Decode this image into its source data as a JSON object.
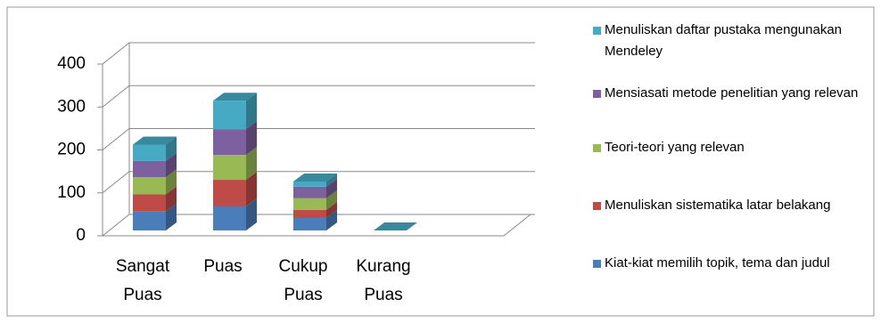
{
  "chart_data": {
    "type": "bar3d_stacked",
    "categories": [
      "Sangat Puas",
      "Puas",
      "Cukup Puas",
      "Kurang Puas",
      null
    ],
    "series": [
      {
        "name": "Kiat-kiat memilih topik, tema dan judul",
        "color": "#4a7ebb",
        "values": [
          44,
          56,
          29,
          0,
          null
        ]
      },
      {
        "name": "Menuliskan sistematika latar belakang",
        "color": "#be4b48",
        "values": [
          40,
          62,
          19,
          0,
          null
        ]
      },
      {
        "name": "Teori-teori yang relevan",
        "color": "#98b954",
        "values": [
          40,
          58,
          27,
          0,
          null
        ]
      },
      {
        "name": "Mensiasati metode penelitian yang relevan",
        "color": "#7d60a0",
        "values": [
          38,
          60,
          27,
          0,
          null
        ]
      },
      {
        "name": "Menuliskan daftar pustaka mengunakan Mendeley",
        "color": "#46aac5",
        "values": [
          38,
          66,
          12,
          0,
          null
        ]
      }
    ],
    "ylim": [
      0,
      400
    ],
    "yticks": [
      0,
      100,
      200,
      300,
      400
    ],
    "grid": true,
    "legend": "right"
  }
}
